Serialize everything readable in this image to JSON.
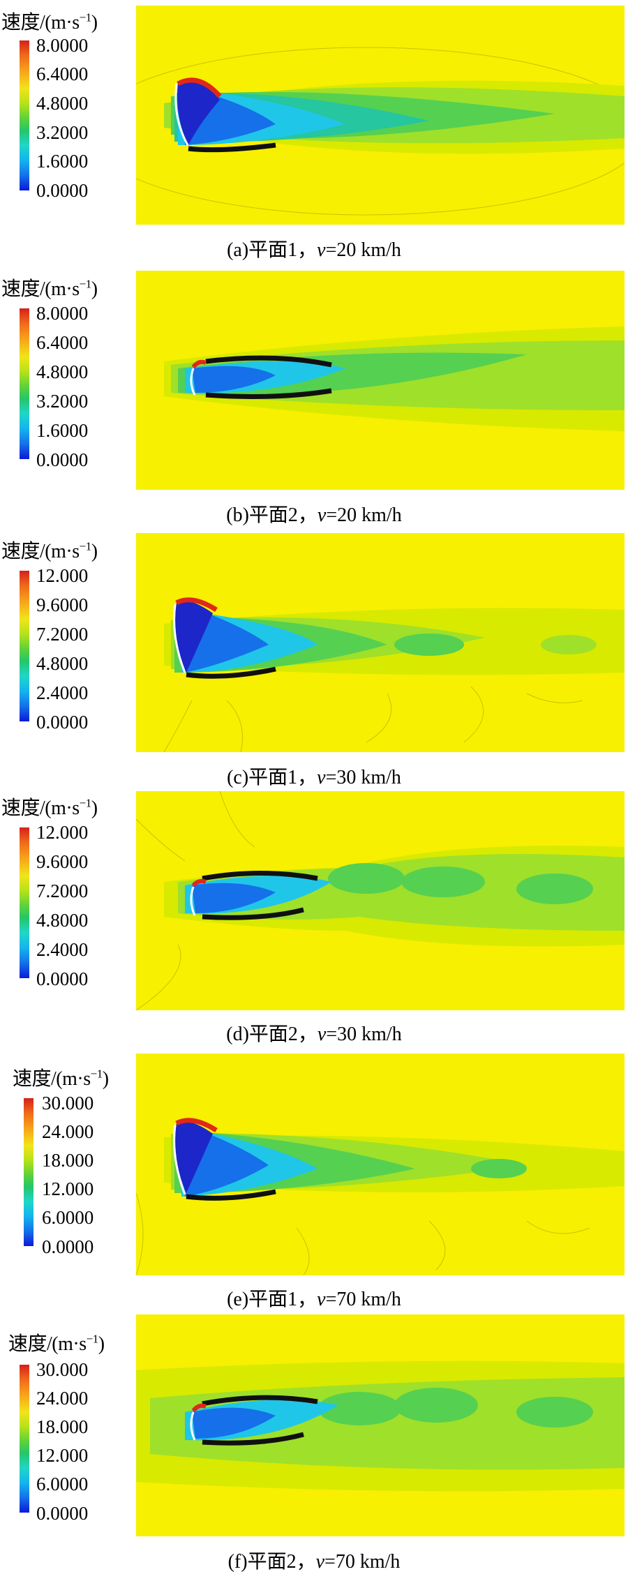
{
  "colorbar_title": "速度/(m·s",
  "colorbar_exponent": "−1",
  "colorbar_title_close": ")",
  "panels": [
    {
      "ticks": [
        "8.0000",
        "6.4000",
        "4.8000",
        "3.2000",
        "1.6000",
        "0.0000"
      ],
      "caption_prefix": "(a)平面1，",
      "caption_var": "v",
      "caption_suffix": "=20 km/h"
    },
    {
      "ticks": [
        "8.0000",
        "6.4000",
        "4.8000",
        "3.2000",
        "1.6000",
        "0.0000"
      ],
      "caption_prefix": "(b)平面2，",
      "caption_var": "v",
      "caption_suffix": "=20 km/h"
    },
    {
      "ticks": [
        "12.000",
        "9.6000",
        "7.2000",
        "4.8000",
        "2.4000",
        "0.0000"
      ],
      "caption_prefix": "(c)平面1，",
      "caption_var": "v",
      "caption_suffix": "=30 km/h"
    },
    {
      "ticks": [
        "12.000",
        "9.6000",
        "7.2000",
        "4.8000",
        "2.4000",
        "0.0000"
      ],
      "caption_prefix": "(d)平面2，",
      "caption_var": "v",
      "caption_suffix": "=30 km/h"
    },
    {
      "ticks": [
        "30.000",
        "24.000",
        "18.000",
        "12.000",
        "6.0000",
        "0.0000"
      ],
      "caption_prefix": "(e)平面1，",
      "caption_var": "v",
      "caption_suffix": "=70 km/h"
    },
    {
      "ticks": [
        "30.000",
        "24.000",
        "18.000",
        "12.000",
        "6.0000",
        "0.0000"
      ],
      "caption_prefix": "(f)平面2，",
      "caption_var": "v",
      "caption_suffix": "=70 km/h"
    }
  ]
}
